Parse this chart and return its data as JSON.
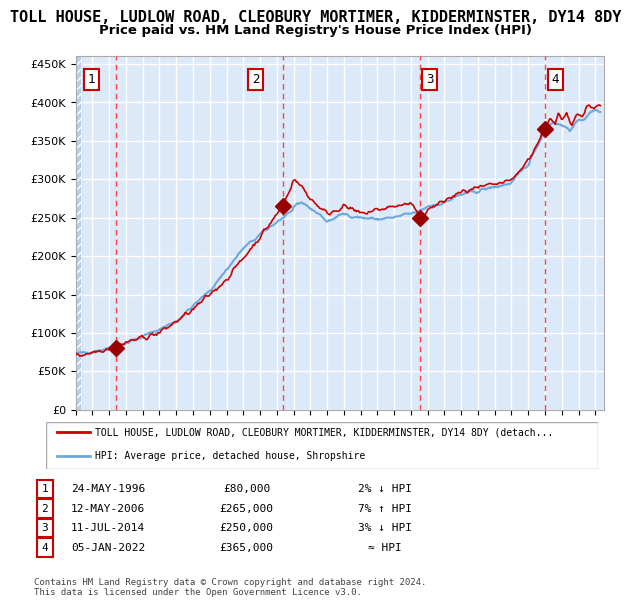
{
  "title": "TOLL HOUSE, LUDLOW ROAD, CLEOBURY MORTIMER, KIDDERMINSTER, DY14 8DY",
  "subtitle": "Price paid vs. HM Land Registry's House Price Index (HPI)",
  "title_fontsize": 11,
  "subtitle_fontsize": 9.5,
  "xlim": [
    1994.0,
    2025.5
  ],
  "ylim": [
    0,
    460000
  ],
  "yticks": [
    0,
    50000,
    100000,
    150000,
    200000,
    250000,
    300000,
    350000,
    400000,
    450000
  ],
  "ytick_labels": [
    "£0",
    "£50K",
    "£100K",
    "£150K",
    "£200K",
    "£250K",
    "£300K",
    "£350K",
    "£400K",
    "£450K"
  ],
  "background_color": "#dce9f8",
  "hatch_color": "#b0c8e8",
  "grid_color": "#ffffff",
  "hpi_color": "#6fa8dc",
  "price_color": "#cc0000",
  "sale_marker_color": "#990000",
  "dashed_line_color": "#ff4444",
  "purchases": [
    {
      "label": "1",
      "date_x": 1996.39,
      "price": 80000
    },
    {
      "label": "2",
      "date_x": 2006.37,
      "price": 265000
    },
    {
      "label": "3",
      "date_x": 2014.52,
      "price": 250000
    },
    {
      "label": "4",
      "date_x": 2022.01,
      "price": 365000
    }
  ],
  "legend_entries": [
    "TOLL HOUSE, LUDLOW ROAD, CLEOBURY MORTIMER, KIDDERMINSTER, DY14 8DY (detach...",
    "HPI: Average price, detached house, Shropshire"
  ],
  "table_rows": [
    {
      "num": "1",
      "date": "24-MAY-1996",
      "price": "£80,000",
      "rel": "2% ↓ HPI"
    },
    {
      "num": "2",
      "date": "12-MAY-2006",
      "price": "£265,000",
      "rel": "7% ↑ HPI"
    },
    {
      "num": "3",
      "date": "11-JUL-2014",
      "price": "£250,000",
      "rel": "3% ↓ HPI"
    },
    {
      "num": "4",
      "date": "05-JAN-2022",
      "price": "£365,000",
      "rel": "≈ HPI"
    }
  ],
  "footnote": "Contains HM Land Registry data © Crown copyright and database right 2024.\nThis data is licensed under the Open Government Licence v3.0."
}
